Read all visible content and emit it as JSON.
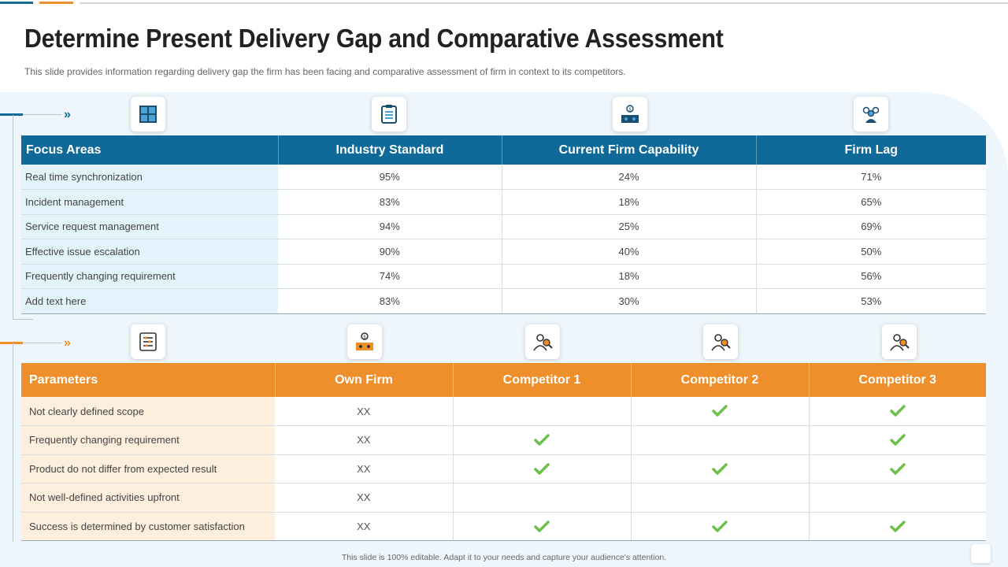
{
  "slide": {
    "title": "Determine Present Delivery Gap and Comparative Assessment",
    "subtitle": "This slide provides information regarding delivery gap the firm has been facing and comparative assessment of firm in context to its competitors.",
    "footer": "This slide is 100% editable. Adapt it to your needs and capture your audience's attention."
  },
  "colors": {
    "blue": "#0f6a99",
    "orange": "#ef8f2b",
    "check": "#6cc04a"
  },
  "gap_table": {
    "icons": [
      "grid-window-icon",
      "clipboard-icon",
      "dollar-presentation-icon",
      "team-group-icon"
    ],
    "headers": [
      "Focus Areas",
      "Industry Standard",
      "Current Firm Capability",
      "Firm Lag"
    ],
    "rows": [
      [
        "Real time synchronization",
        "95%",
        "24%",
        "71%"
      ],
      [
        "Incident management",
        "83%",
        "18%",
        "65%"
      ],
      [
        "Service request management",
        "94%",
        "25%",
        "69%"
      ],
      [
        "Effective issue escalation",
        "90%",
        "40%",
        "50%"
      ],
      [
        "Frequently changing requirement",
        "74%",
        "18%",
        "56%"
      ],
      [
        "Add text here",
        "83%",
        "30%",
        "53%"
      ]
    ]
  },
  "comparison_table": {
    "icons": [
      "checklist-icon",
      "dollar-presentation-icon",
      "person-search-icon",
      "person-search-icon",
      "person-search-icon"
    ],
    "headers": [
      "Parameters",
      "Own Firm",
      "Competitor 1",
      "Competitor 2",
      "Competitor 3"
    ],
    "rows": [
      [
        "Not clearly defined scope",
        "XX",
        "",
        "check",
        "check"
      ],
      [
        "Frequently changing requirement",
        "XX",
        "check",
        "",
        "check"
      ],
      [
        "Product do not differ from expected result",
        "XX",
        "check",
        "check",
        "check"
      ],
      [
        "Not well-defined  activities upfront",
        "XX",
        "",
        "",
        ""
      ],
      [
        "Success is determined by customer satisfaction",
        "XX",
        "check",
        "check",
        "check"
      ]
    ]
  }
}
